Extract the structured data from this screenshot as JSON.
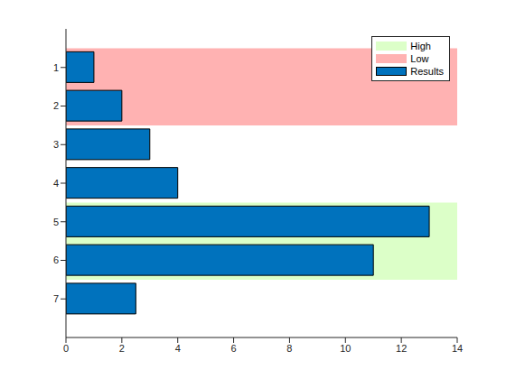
{
  "chart_data": {
    "type": "bar",
    "orientation": "horizontal",
    "categories": [
      1,
      2,
      3,
      4,
      5,
      6,
      7
    ],
    "series": [
      {
        "name": "Results",
        "color": "#0072bd",
        "values": [
          1,
          2,
          3,
          4,
          13,
          11,
          2.5
        ]
      }
    ],
    "bands": [
      {
        "name": "High",
        "color": "#dcffc8",
        "range": [
          4.5,
          6.5
        ]
      },
      {
        "name": "Low",
        "color": "#ffb2b2",
        "range": [
          0.5,
          2.5
        ]
      }
    ],
    "xlim": [
      0,
      14
    ],
    "xticks": [
      0,
      2,
      4,
      6,
      8,
      10,
      12,
      14
    ],
    "ylim": [
      0,
      8
    ],
    "yticks": [
      1,
      2,
      3,
      4,
      5,
      6,
      7
    ],
    "legend": "upper right"
  }
}
